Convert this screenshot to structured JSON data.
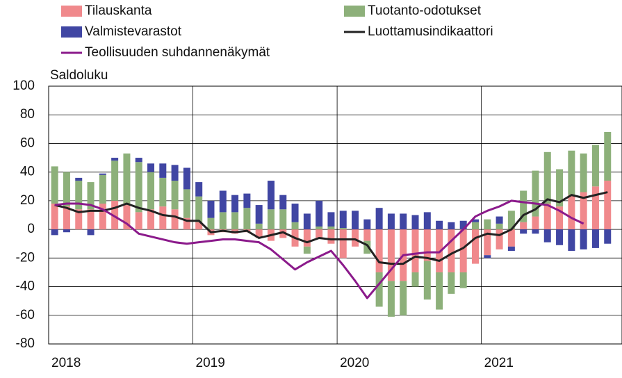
{
  "chart_data": {
    "type": "bar",
    "y_label": "Saldoluku",
    "categories": [
      "2018",
      null,
      null,
      null,
      null,
      null,
      null,
      null,
      null,
      null,
      null,
      null,
      "2019",
      null,
      null,
      null,
      null,
      null,
      null,
      null,
      null,
      null,
      null,
      null,
      "2020",
      null,
      null,
      null,
      null,
      null,
      null,
      null,
      null,
      null,
      null,
      null,
      "2021",
      null,
      null,
      null,
      null,
      null,
      null,
      null,
      null,
      null,
      null
    ],
    "series": [
      {
        "name": "Tilauskanta",
        "color": "#f0898c",
        "kind": "bar",
        "values": [
          18,
          16,
          14,
          14,
          18,
          20,
          17,
          12,
          14,
          16,
          14,
          8,
          5,
          -4,
          -2,
          -3,
          -2,
          -6,
          -8,
          -6,
          -12,
          -12,
          -6,
          -10,
          -20,
          -12,
          -8,
          -30,
          -36,
          -36,
          -30,
          -22,
          -30,
          -30,
          -30,
          -24,
          -18,
          -14,
          -12,
          5,
          9,
          18,
          16,
          24,
          26,
          30,
          34
        ]
      },
      {
        "name": "Tuotanto-odotukset",
        "color": "#8db07a",
        "kind": "bar",
        "values": [
          26,
          24,
          20,
          19,
          20,
          28,
          36,
          35,
          26,
          20,
          20,
          20,
          18,
          8,
          12,
          12,
          15,
          4,
          14,
          14,
          5,
          -5,
          2,
          2,
          1,
          0,
          -9,
          -24,
          -25,
          -24,
          -10,
          -27,
          -26,
          -15,
          -11,
          5,
          7,
          4,
          13,
          22,
          32,
          36,
          26,
          31,
          27,
          29,
          34
        ]
      },
      {
        "name": "Valmistevarastot",
        "color": "#4046a3",
        "kind": "bar",
        "values": [
          -4,
          -2,
          2,
          -4,
          1,
          2,
          0,
          3,
          6,
          10,
          11,
          15,
          10,
          12,
          15,
          12,
          10,
          13,
          20,
          10,
          13,
          11,
          18,
          10,
          12,
          13,
          7,
          15,
          11,
          11,
          10,
          12,
          6,
          5,
          6,
          2,
          -2,
          5,
          -3,
          -3,
          -3,
          -9,
          -11,
          -15,
          -14,
          -13,
          -10
        ]
      },
      {
        "name": "Luottamusindikaattori",
        "color": "#222222",
        "kind": "line",
        "values": [
          17,
          15,
          12,
          13,
          13,
          15,
          18,
          15,
          13,
          10,
          9,
          6,
          6,
          -2,
          -1,
          -2,
          -1,
          -6,
          -4,
          -2,
          -6,
          -9,
          -6,
          -7,
          -7,
          -7,
          -11,
          -23,
          -24,
          -24,
          -19,
          -20,
          -22,
          -17,
          -13,
          -6,
          -3,
          -4,
          0,
          10,
          14,
          21,
          19,
          24,
          22,
          24,
          26
        ]
      },
      {
        "name": "Teollisuuden suhdannenäkymät",
        "color": "#8b1a8b",
        "kind": "line",
        "values": [
          17,
          18,
          18,
          17,
          14,
          9,
          4,
          -3,
          -5,
          -7,
          -9,
          -10,
          -9,
          -8,
          -7,
          -7,
          -8,
          -9,
          -14,
          -21,
          -28,
          -23,
          -19,
          -15,
          -25,
          -36,
          -48,
          -38,
          -28,
          -18,
          -17,
          -16,
          -16,
          -8,
          0,
          9,
          13,
          16,
          20,
          19,
          18,
          17,
          13,
          8,
          4,
          null,
          null
        ]
      }
    ],
    "ylim": [
      -80,
      100
    ],
    "yticks": [
      -80,
      -60,
      -40,
      -20,
      0,
      20,
      40,
      60,
      80,
      100
    ],
    "grid": true
  }
}
